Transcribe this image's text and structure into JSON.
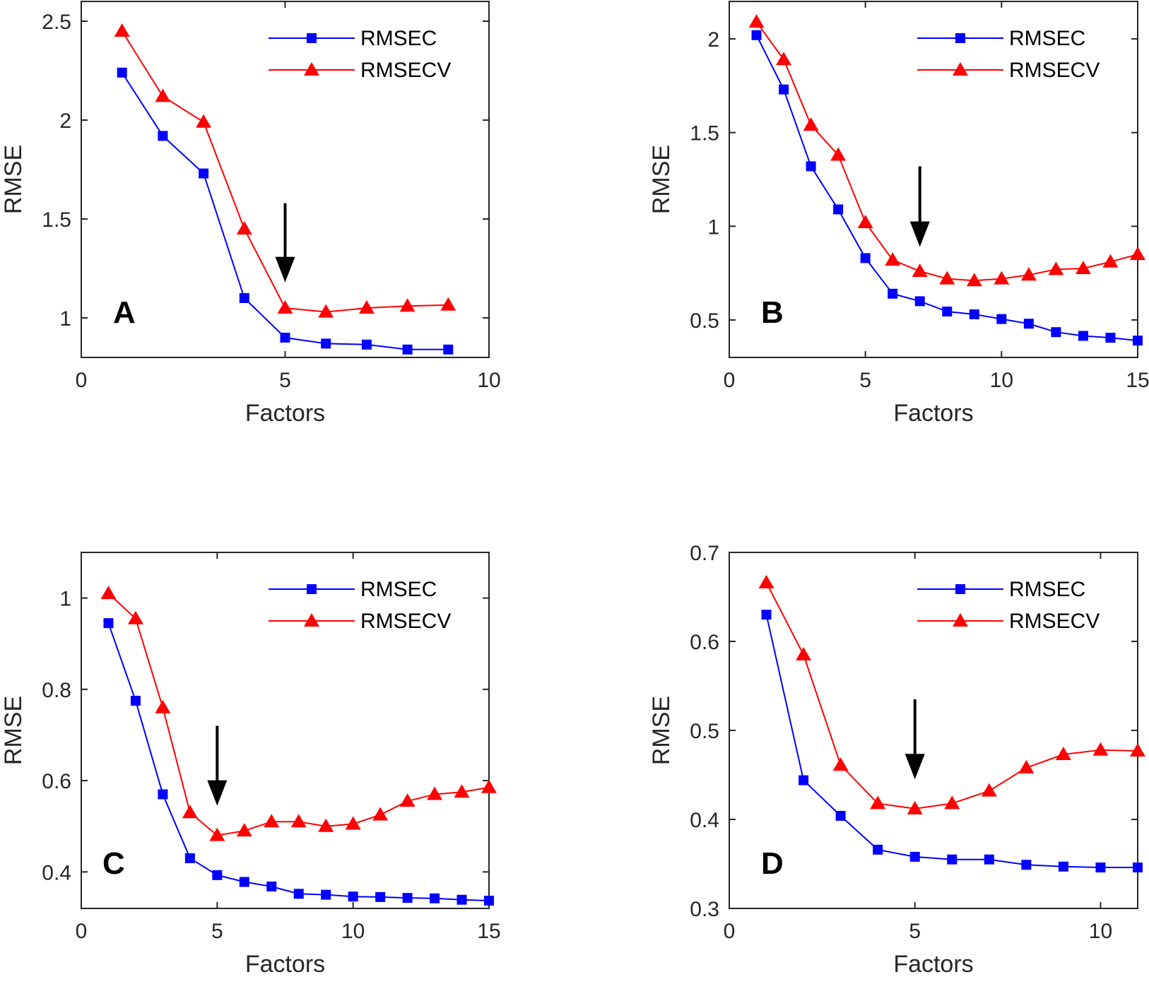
{
  "figure": {
    "colors": {
      "rmsec": "#0000ff",
      "rmsecv": "#ff0000",
      "axis": "#262626",
      "arrow": "#000000"
    }
  },
  "chart_data": [
    {
      "panel": "A",
      "type": "line",
      "xlabel": "Factors",
      "ylabel": "RMSE",
      "xlim": [
        0,
        10
      ],
      "ylim": [
        0.8,
        2.6
      ],
      "xticks": [
        0,
        5,
        10
      ],
      "yticks": [
        1,
        1.5,
        2,
        2.5
      ],
      "xtick_labels": [
        "0",
        "5",
        "10"
      ],
      "ytick_labels": [
        "1",
        "1.5",
        "2",
        "2.5"
      ],
      "legend": {
        "position": "top-right",
        "entries": [
          "RMSEC",
          "RMSECV"
        ]
      },
      "arrow_at": {
        "x": 5,
        "y_top": 1.58,
        "y_bottom": 1.18
      },
      "x": [
        1,
        2,
        3,
        4,
        5,
        6,
        7,
        8,
        9
      ],
      "series": [
        {
          "name": "RMSEC",
          "marker": "square",
          "values": [
            2.24,
            1.92,
            1.73,
            1.1,
            0.9,
            0.87,
            0.865,
            0.84,
            0.84
          ]
        },
        {
          "name": "RMSECV",
          "marker": "triangle",
          "values": [
            2.45,
            2.12,
            1.99,
            1.45,
            1.05,
            1.03,
            1.05,
            1.06,
            1.065
          ]
        }
      ]
    },
    {
      "panel": "B",
      "type": "line",
      "xlabel": "Factors",
      "ylabel": "RMSE",
      "xlim": [
        0,
        15
      ],
      "ylim": [
        0.3,
        2.2
      ],
      "xticks": [
        0,
        5,
        10,
        15
      ],
      "yticks": [
        0.5,
        1,
        1.5,
        2
      ],
      "xtick_labels": [
        "0",
        "5",
        "10",
        "15"
      ],
      "ytick_labels": [
        "0.5",
        "1",
        "1.5",
        "2"
      ],
      "legend": {
        "position": "top-right",
        "entries": [
          "RMSEC",
          "RMSECV"
        ]
      },
      "arrow_at": {
        "x": 7,
        "y_top": 1.32,
        "y_bottom": 0.89
      },
      "x": [
        1,
        2,
        3,
        4,
        5,
        6,
        7,
        8,
        9,
        10,
        11,
        12,
        13,
        14,
        15
      ],
      "series": [
        {
          "name": "RMSEC",
          "marker": "square",
          "values": [
            2.02,
            1.73,
            1.32,
            1.09,
            0.83,
            0.64,
            0.6,
            0.545,
            0.53,
            0.505,
            0.48,
            0.435,
            0.415,
            0.405,
            0.39
          ]
        },
        {
          "name": "RMSECV",
          "marker": "triangle",
          "values": [
            2.09,
            1.89,
            1.54,
            1.38,
            1.02,
            0.82,
            0.76,
            0.72,
            0.71,
            0.72,
            0.74,
            0.77,
            0.775,
            0.81,
            0.85
          ]
        }
      ]
    },
    {
      "panel": "C",
      "type": "line",
      "xlabel": "Factors",
      "ylabel": "RMSE",
      "xlim": [
        0,
        15
      ],
      "ylim": [
        0.32,
        1.1
      ],
      "xticks": [
        0,
        5,
        10,
        15
      ],
      "yticks": [
        0.4,
        0.6,
        0.8,
        1
      ],
      "xtick_labels": [
        "0",
        "5",
        "10",
        "15"
      ],
      "ytick_labels": [
        "0.4",
        "0.6",
        "0.8",
        "1"
      ],
      "legend": {
        "position": "top-right",
        "entries": [
          "RMSEC",
          "RMSECV"
        ]
      },
      "arrow_at": {
        "x": 5,
        "y_top": 0.72,
        "y_bottom": 0.545
      },
      "x": [
        1,
        2,
        3,
        4,
        5,
        6,
        7,
        8,
        9,
        10,
        11,
        12,
        13,
        14,
        15
      ],
      "series": [
        {
          "name": "RMSEC",
          "marker": "square",
          "values": [
            0.945,
            0.775,
            0.57,
            0.43,
            0.393,
            0.378,
            0.368,
            0.352,
            0.35,
            0.346,
            0.345,
            0.343,
            0.342,
            0.339,
            0.337
          ]
        },
        {
          "name": "RMSECV",
          "marker": "triangle",
          "values": [
            1.01,
            0.955,
            0.76,
            0.53,
            0.48,
            0.49,
            0.51,
            0.51,
            0.5,
            0.505,
            0.525,
            0.555,
            0.57,
            0.575,
            0.585
          ]
        }
      ]
    },
    {
      "panel": "D",
      "type": "line",
      "xlabel": "Factors",
      "ylabel": "RMSE",
      "xlim": [
        0,
        11
      ],
      "ylim": [
        0.3,
        0.7
      ],
      "xticks": [
        0,
        5,
        10
      ],
      "yticks": [
        0.3,
        0.4,
        0.5,
        0.6,
        0.7
      ],
      "xtick_labels": [
        "0",
        "5",
        "10"
      ],
      "ytick_labels": [
        "0.3",
        "0.4",
        "0.5",
        "0.6",
        "0.7"
      ],
      "legend": {
        "position": "top-right",
        "entries": [
          "RMSEC",
          "RMSECV"
        ]
      },
      "arrow_at": {
        "x": 5,
        "y_top": 0.535,
        "y_bottom": 0.445
      },
      "x": [
        1,
        2,
        3,
        4,
        5,
        6,
        7,
        8,
        9,
        10,
        11
      ],
      "series": [
        {
          "name": "RMSEC",
          "marker": "square",
          "values": [
            0.63,
            0.444,
            0.404,
            0.366,
            0.358,
            0.355,
            0.355,
            0.349,
            0.347,
            0.346,
            0.346
          ]
        },
        {
          "name": "RMSECV",
          "marker": "triangle",
          "values": [
            0.666,
            0.585,
            0.461,
            0.418,
            0.412,
            0.418,
            0.432,
            0.458,
            0.473,
            0.478,
            0.477
          ]
        }
      ]
    }
  ]
}
